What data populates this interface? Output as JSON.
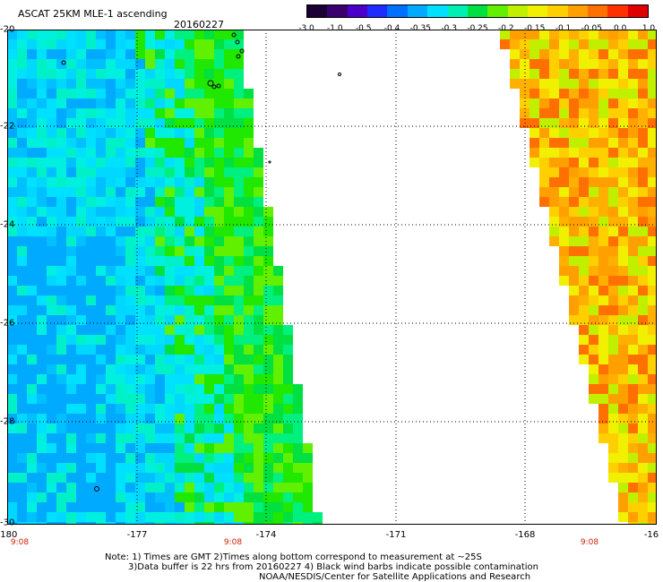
{
  "header": {
    "title": "ASCAT 25KM MLE-1 ascending",
    "date": "20160227"
  },
  "colorbar": {
    "labels": [
      "-3.0",
      "-1.0",
      "-0.5",
      "-0.4",
      "-0.35",
      "-0.3",
      "-0.25",
      "-0.2",
      "-0.15",
      "-0.1",
      "-0.05",
      "0.0",
      "1.0"
    ],
    "colors": [
      "#1a0033",
      "#3a006e",
      "#4a00c8",
      "#1e2cff",
      "#0070ff",
      "#00aaff",
      "#00e0ff",
      "#00f0b4",
      "#00e040",
      "#60f000",
      "#c0f000",
      "#f0f000",
      "#ffd000",
      "#ffa000",
      "#ff7000",
      "#ff3000",
      "#e00000"
    ]
  },
  "axes": {
    "lon_labels": [
      "-180",
      "-177",
      "-174",
      "-171",
      "-168",
      "-16"
    ],
    "lat_labels": [
      "-20",
      "-22",
      "-24",
      "-26",
      "-28",
      "-30"
    ],
    "time_labels": [
      "9:08",
      "9:08",
      "9:08"
    ]
  },
  "note": {
    "line1": "Note: 1) Times are GMT 2)Times along bottom correspond to measurement at ~25S",
    "line2": "3)Data buffer is 22 hrs from 20160227 4) Black wind barbs indicate possible contamination",
    "line3": "NOAA/NESDIS/Center for Satellite Applications and Research"
  },
  "map": {
    "lon_range": [
      -180,
      -164
    ],
    "lat_range": [
      -30,
      -20
    ]
  }
}
